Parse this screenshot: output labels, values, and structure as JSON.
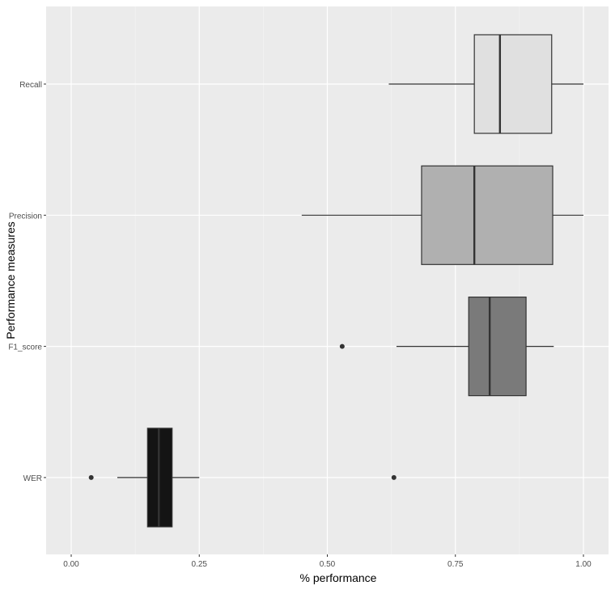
{
  "chart_data": {
    "type": "boxplot",
    "orientation": "horizontal",
    "title": "",
    "xlabel": "% performance",
    "ylabel": "Performance measures",
    "xlim": [
      -0.01,
      1.05
    ],
    "xticks": [
      0.0,
      0.25,
      0.5,
      0.75,
      1.0
    ],
    "xtick_labels": [
      "0.00",
      "0.25",
      "0.50",
      "0.75",
      "1.00"
    ],
    "grid": true,
    "legend": "none",
    "categories": [
      "Recall",
      "Precision",
      "F1_score",
      "WER"
    ],
    "series": [
      {
        "name": "Recall",
        "fill": "#e0e0e0",
        "min": 0.62,
        "q1": 0.787,
        "median": 0.837,
        "q3": 0.938,
        "max": 1.0,
        "outliers": []
      },
      {
        "name": "Precision",
        "fill": "#b0b0b0",
        "min": 0.45,
        "q1": 0.684,
        "median": 0.787,
        "q3": 0.94,
        "max": 1.0,
        "outliers": []
      },
      {
        "name": "F1_score",
        "fill": "#7a7a7a",
        "min": 0.635,
        "q1": 0.776,
        "median": 0.817,
        "q3": 0.888,
        "max": 0.942,
        "outliers": [
          0.529
        ]
      },
      {
        "name": "WER",
        "fill": "#141414",
        "min": 0.09,
        "q1": 0.149,
        "median": 0.171,
        "q3": 0.197,
        "max": 0.25,
        "outliers": [
          0.039,
          0.63
        ]
      }
    ]
  }
}
